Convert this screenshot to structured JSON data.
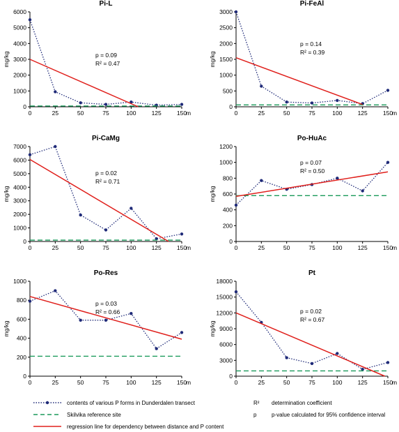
{
  "colors": {
    "data": "#1f2a78",
    "reference": "#1a9a5a",
    "regression": "#e0201c",
    "axis": "#000000"
  },
  "x_categories": [
    0,
    25,
    50,
    75,
    100,
    125,
    150
  ],
  "x_unit": "m",
  "ylabel": "mg/kg",
  "chart_data": [
    {
      "type": "line",
      "title": "Pi-L",
      "ylabel": "mg/kg",
      "yticks": [
        0,
        1000,
        2000,
        3000,
        4000,
        5000,
        6000
      ],
      "ylim": [
        0,
        6000
      ],
      "xlim": [
        0,
        150
      ],
      "xticks": [
        0,
        25,
        50,
        75,
        100,
        125,
        150
      ],
      "series": [
        {
          "kind": "data",
          "x": [
            0,
            25,
            50,
            75,
            100,
            125,
            150
          ],
          "values": [
            5500,
            950,
            250,
            150,
            300,
            100,
            150
          ]
        },
        {
          "kind": "reference",
          "x": [
            0,
            150
          ],
          "values": [
            50,
            50
          ]
        },
        {
          "kind": "regression",
          "x": [
            0,
            107
          ],
          "values": [
            3000,
            0
          ]
        }
      ],
      "annotations": {
        "p": "p = 0.09",
        "r2": "R² = 0.47"
      }
    },
    {
      "type": "line",
      "title": "Pi-FeAl",
      "ylabel": "mg/kg",
      "yticks": [
        0,
        500,
        1000,
        1500,
        2000,
        2500,
        3000
      ],
      "ylim": [
        0,
        3000
      ],
      "xlim": [
        0,
        150
      ],
      "xticks": [
        0,
        25,
        50,
        75,
        100,
        125,
        150
      ],
      "series": [
        {
          "kind": "data",
          "x": [
            0,
            25,
            50,
            75,
            100,
            125,
            150
          ],
          "values": [
            3000,
            650,
            150,
            120,
            200,
            100,
            520
          ]
        },
        {
          "kind": "reference",
          "x": [
            0,
            150
          ],
          "values": [
            60,
            60
          ]
        },
        {
          "kind": "regression",
          "x": [
            0,
            125
          ],
          "values": [
            1550,
            70
          ]
        }
      ],
      "annotations": {
        "p": "p = 0.14",
        "r2": "R² = 0.39"
      }
    },
    {
      "type": "line",
      "title": "Pi-CaMg",
      "ylabel": "mg/kg",
      "yticks": [
        0,
        1000,
        2000,
        3000,
        4000,
        5000,
        6000,
        7000
      ],
      "ylim": [
        0,
        7000
      ],
      "xlim": [
        0,
        150
      ],
      "xticks": [
        0,
        25,
        50,
        75,
        100,
        125,
        150
      ],
      "series": [
        {
          "kind": "data",
          "x": [
            0,
            25,
            50,
            75,
            100,
            125,
            150
          ],
          "values": [
            6400,
            7000,
            1950,
            850,
            2450,
            200,
            550
          ]
        },
        {
          "kind": "reference",
          "x": [
            0,
            150
          ],
          "values": [
            100,
            100
          ]
        },
        {
          "kind": "regression",
          "x": [
            0,
            137
          ],
          "values": [
            6050,
            0
          ]
        }
      ],
      "annotations": {
        "p": "p = 0.02",
        "r2": "R² = 0.71"
      }
    },
    {
      "type": "line",
      "title": "Po-HuAc",
      "ylabel": "mg/kg",
      "yticks": [
        0,
        200,
        400,
        600,
        800,
        1000,
        1200
      ],
      "ylim": [
        0,
        1200
      ],
      "xlim": [
        0,
        150
      ],
      "xticks": [
        0,
        25,
        50,
        75,
        100,
        125,
        150
      ],
      "series": [
        {
          "kind": "data",
          "x": [
            0,
            25,
            50,
            75,
            100,
            125,
            150
          ],
          "values": [
            460,
            770,
            660,
            720,
            800,
            640,
            1000
          ]
        },
        {
          "kind": "reference",
          "x": [
            0,
            150
          ],
          "values": [
            580,
            580
          ]
        },
        {
          "kind": "regression",
          "x": [
            0,
            150
          ],
          "values": [
            570,
            880
          ]
        }
      ],
      "annotations": {
        "p": "p = 0.07",
        "r2": "R² = 0.50"
      }
    },
    {
      "type": "line",
      "title": "Po-Res",
      "ylabel": "mg/kg",
      "yticks": [
        0,
        200,
        400,
        600,
        800,
        1000
      ],
      "ylim": [
        0,
        1000
      ],
      "xlim": [
        0,
        150
      ],
      "xticks": [
        0,
        25,
        50,
        75,
        100,
        125,
        150
      ],
      "series": [
        {
          "kind": "data",
          "x": [
            0,
            25,
            50,
            75,
            100,
            125,
            150
          ],
          "values": [
            790,
            900,
            590,
            590,
            660,
            290,
            460
          ]
        },
        {
          "kind": "reference",
          "x": [
            0,
            150
          ],
          "values": [
            210,
            210
          ]
        },
        {
          "kind": "regression",
          "x": [
            0,
            150
          ],
          "values": [
            840,
            390
          ]
        }
      ],
      "annotations": {
        "p": "p = 0.03",
        "r2": "R² = 0.66"
      }
    },
    {
      "type": "line",
      "title": "Pt",
      "ylabel": "mg/kg",
      "yticks": [
        0,
        3000,
        6000,
        9000,
        12000,
        15000,
        18000
      ],
      "ylim": [
        0,
        18000
      ],
      "xlim": [
        0,
        150
      ],
      "xticks": [
        0,
        25,
        50,
        75,
        100,
        125,
        150
      ],
      "series": [
        {
          "kind": "data",
          "x": [
            0,
            25,
            50,
            75,
            100,
            125,
            150
          ],
          "values": [
            16000,
            10200,
            3500,
            2400,
            4300,
            1300,
            2600
          ]
        },
        {
          "kind": "reference",
          "x": [
            0,
            150
          ],
          "values": [
            1000,
            1000
          ]
        },
        {
          "kind": "regression",
          "x": [
            0,
            147
          ],
          "values": [
            12000,
            0
          ]
        }
      ],
      "annotations": {
        "p": "p = 0.02",
        "r2": "R² = 0.67"
      }
    }
  ],
  "legend": {
    "data_label": "contents of various P forms in Dunderdalen transect",
    "reference_label": "Skilvika reference site",
    "regression_label": "regression line for dependency between distance and P content",
    "r2_symbol": "R²",
    "r2_label": "determination coefficient",
    "p_symbol": "p",
    "p_label": "p-value calculated for 95% confidence interval"
  }
}
